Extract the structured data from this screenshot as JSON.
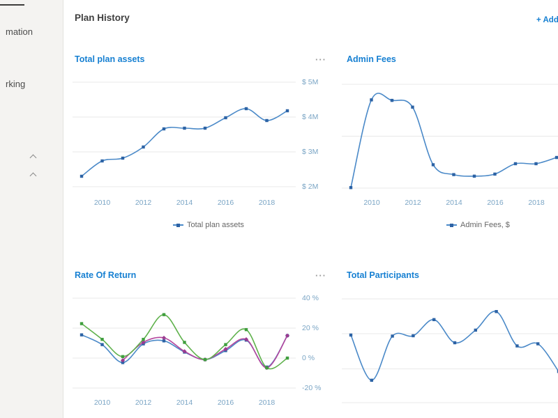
{
  "sidebar": {
    "items": [
      {
        "label": "mation"
      },
      {
        "label": "rking"
      }
    ]
  },
  "header": {
    "title": "Plan History",
    "add_button": "+ Add"
  },
  "colors": {
    "accent": "#1780d2",
    "line_blue": "#4a89c8",
    "marker_blue": "#2d63a5",
    "line_green": "#5fb14c",
    "marker_green": "#3f9e3e",
    "line_magenta": "#b4459d",
    "marker_magenta": "#9a3b90",
    "grid": "#e8e8e8",
    "axis_label": "#7aa5c5"
  },
  "chart_data": [
    {
      "type": "line",
      "title": "Total plan assets",
      "legend": "Total plan assets",
      "legend_position": "bottom",
      "grid": true,
      "x": [
        2009,
        2010,
        2011,
        2012,
        2013,
        2014,
        2015,
        2016,
        2017,
        2018,
        2019
      ],
      "xticks": [
        "2010",
        "2012",
        "2014",
        "2016",
        "2018"
      ],
      "yticks": [
        "$ 5M",
        "$ 4M",
        "$ 3M",
        "$ 2M"
      ],
      "ylabel": "$",
      "ylim": [
        2,
        5
      ],
      "series": [
        {
          "name": "Total plan assets",
          "color": "blue",
          "values": [
            2.3,
            2.74,
            2.82,
            3.14,
            3.66,
            3.68,
            3.68,
            3.98,
            4.24,
            3.9,
            4.18
          ]
        }
      ]
    },
    {
      "type": "line",
      "title": "Admin Fees",
      "legend": "Admin Fees, $",
      "legend_position": "bottom",
      "grid": true,
      "x": [
        2009,
        2010,
        2011,
        2012,
        2013,
        2014,
        2015,
        2016,
        2017,
        2018,
        2019
      ],
      "xticks": [
        "2010",
        "2012",
        "2014",
        "2016",
        "2018"
      ],
      "yticks": [],
      "ylabel": "$ (axis labels cut off at right edge)",
      "ylim": [
        0,
        2.2
      ],
      "series": [
        {
          "name": "Admin Fees, $",
          "color": "blue",
          "values": [
            0.01,
            1.7,
            1.69,
            1.56,
            0.45,
            0.26,
            0.23,
            0.27,
            0.47,
            0.47,
            0.59
          ]
        }
      ]
    },
    {
      "type": "line",
      "title": "Rate Of Return",
      "legend": "",
      "legend_position": "bottom (cut off)",
      "grid": true,
      "x": [
        2009,
        2010,
        2011,
        2012,
        2013,
        2014,
        2015,
        2016,
        2017,
        2018,
        2019
      ],
      "xticks": [
        "2010",
        "2012",
        "2014",
        "2016",
        "2018"
      ],
      "yticks": [
        "40 %",
        "20 %",
        "0 %",
        "-20 %"
      ],
      "ylabel": "%",
      "ylim": [
        -25,
        45
      ],
      "series": [
        {
          "name": "blue",
          "color": "blue",
          "values": [
            15.5,
            9,
            -3,
            9.5,
            11.5,
            4,
            -1,
            5,
            12,
            -6,
            15
          ]
        },
        {
          "name": "magenta",
          "color": "magenta",
          "values": [
            null,
            null,
            -1.5,
            10.5,
            13.5,
            4.5,
            -1,
            6,
            12.5,
            -6.5,
            15
          ]
        },
        {
          "name": "green",
          "color": "green",
          "values": [
            23,
            12.5,
            1,
            12.5,
            29,
            10.5,
            -1,
            9,
            19,
            -6.5,
            0
          ]
        }
      ]
    },
    {
      "type": "line",
      "title": "Total Participants",
      "legend": "",
      "legend_position": "bottom (cut off)",
      "grid": true,
      "x": [
        2009,
        2010,
        2011,
        2012,
        2013,
        2014,
        2015,
        2016,
        2017,
        2018,
        2019
      ],
      "xticks": [],
      "yticks": [],
      "ylabel": "participants (axis labels cut off)",
      "ylim": [
        0,
        3
      ],
      "series": [
        {
          "name": "Total Participants",
          "color": "blue",
          "values": [
            1.93,
            0.64,
            1.9,
            1.91,
            2.37,
            1.71,
            2.07,
            2.6,
            1.62,
            1.68,
            0.89
          ]
        }
      ]
    }
  ]
}
